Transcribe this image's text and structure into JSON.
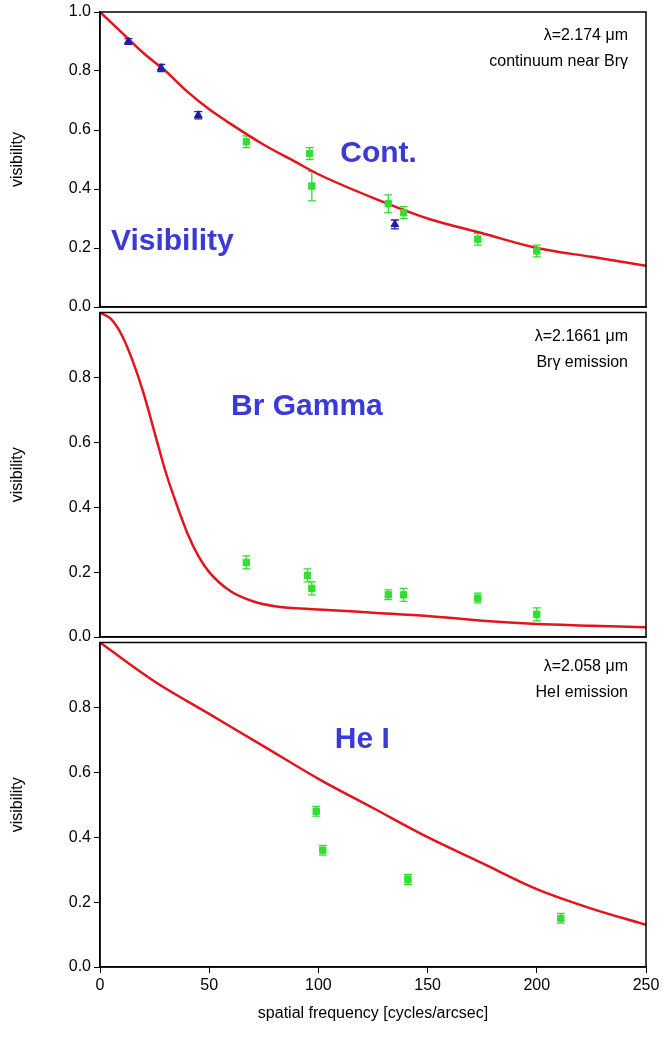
{
  "chart_data": [
    {
      "type": "scatter",
      "title": "Cont.",
      "subtitle": "Visibility",
      "annotations": [
        "λ=2.174 μm",
        "continuum near Brγ"
      ],
      "ylabel": "visibility",
      "xlim": [
        0,
        250
      ],
      "xticks": [
        0,
        50,
        100,
        150,
        200,
        250
      ],
      "ylim": [
        0,
        1
      ],
      "yticks": [
        {
          "value": 0,
          "label": "0.0"
        },
        {
          "value": 0.2,
          "label": "0.2"
        },
        {
          "value": 0.4,
          "label": "0.4"
        },
        {
          "value": 0.6,
          "label": "0.6"
        },
        {
          "value": 0.8,
          "label": "0.8"
        },
        {
          "value": 1,
          "label": "1.0"
        }
      ],
      "grid": false,
      "tick_labels": "y",
      "series": [
        {
          "type": "line",
          "color": "#e3141b",
          "line_style": "solid",
          "x": [
            0,
            10,
            20,
            30,
            40,
            50,
            60,
            75,
            90,
            100,
            125,
            150,
            175,
            200,
            225,
            250
          ],
          "values": [
            1.0,
            0.93,
            0.86,
            0.8,
            0.73,
            0.67,
            0.62,
            0.55,
            0.49,
            0.45,
            0.37,
            0.3,
            0.25,
            0.2,
            0.17,
            0.14
          ]
        },
        {
          "type": "scatter",
          "color": "#1c1ca8",
          "marker": "triangle",
          "x": [
            13,
            28,
            45,
            135
          ],
          "values": [
            0.9,
            0.81,
            0.65,
            0.28
          ],
          "errors": [
            0.01,
            0.012,
            0.012,
            0.015
          ]
        },
        {
          "type": "scatter",
          "color": "#33dd33",
          "marker": "square",
          "x": [
            67,
            96,
            97,
            132,
            139,
            173,
            200
          ],
          "values": [
            0.56,
            0.52,
            0.41,
            0.35,
            0.32,
            0.23,
            0.19
          ],
          "errors": [
            0.02,
            0.02,
            0.05,
            0.03,
            0.02,
            0.02,
            0.02
          ]
        }
      ]
    },
    {
      "type": "scatter",
      "title": "Br Gamma",
      "annotations": [
        "λ=2.1661 μm",
        "Brγ emission"
      ],
      "ylabel": "visibility",
      "xlim": [
        0,
        250
      ],
      "xticks": [
        0,
        50,
        100,
        150,
        200,
        250
      ],
      "ylim": [
        0,
        1
      ],
      "yticks": [
        {
          "value": 0,
          "label": "0.0"
        },
        {
          "value": 0.2,
          "label": "0.2"
        },
        {
          "value": 0.4,
          "label": "0.4"
        },
        {
          "value": 0.6,
          "label": "0.6"
        },
        {
          "value": 0.8,
          "label": "0.8"
        }
      ],
      "grid": false,
      "tick_labels": "y",
      "series": [
        {
          "type": "line",
          "color": "#e3141b",
          "line_style": "solid",
          "x": [
            0,
            5,
            10,
            15,
            20,
            25,
            30,
            35,
            40,
            45,
            50,
            60,
            70,
            80,
            100,
            125,
            150,
            175,
            200,
            225,
            250
          ],
          "values": [
            1.0,
            0.98,
            0.93,
            0.85,
            0.75,
            0.63,
            0.51,
            0.41,
            0.32,
            0.25,
            0.2,
            0.14,
            0.11,
            0.095,
            0.085,
            0.075,
            0.065,
            0.05,
            0.04,
            0.035,
            0.03
          ]
        },
        {
          "type": "scatter",
          "color": "#33dd33",
          "marker": "square",
          "x": [
            67,
            95,
            97,
            132,
            139,
            173,
            200
          ],
          "values": [
            0.23,
            0.19,
            0.15,
            0.13,
            0.13,
            0.12,
            0.07
          ],
          "errors": [
            0.02,
            0.02,
            0.02,
            0.015,
            0.02,
            0.015,
            0.02
          ]
        }
      ]
    },
    {
      "type": "scatter",
      "title": "He I",
      "annotations": [
        "λ=2.058 μm",
        "HeI emission"
      ],
      "xlabel": "spatial frequency [cycles/arcsec]",
      "ylabel": "visibility",
      "xlim": [
        0,
        250
      ],
      "xticks": [
        0,
        50,
        100,
        150,
        200,
        250
      ],
      "ylim": [
        0,
        1
      ],
      "yticks": [
        {
          "value": 0,
          "label": "0.0"
        },
        {
          "value": 0.2,
          "label": "0.2"
        },
        {
          "value": 0.4,
          "label": "0.4"
        },
        {
          "value": 0.6,
          "label": "0.6"
        },
        {
          "value": 0.8,
          "label": "0.8"
        }
      ],
      "grid": false,
      "series": [
        {
          "type": "line",
          "color": "#e3141b",
          "line_style": "solid",
          "x": [
            0,
            25,
            50,
            75,
            100,
            125,
            150,
            175,
            200,
            225,
            250
          ],
          "values": [
            1.0,
            0.88,
            0.78,
            0.68,
            0.58,
            0.49,
            0.4,
            0.32,
            0.24,
            0.18,
            0.13
          ]
        },
        {
          "type": "scatter",
          "color": "#33dd33",
          "marker": "square",
          "x": [
            99,
            102,
            141,
            211
          ],
          "values": [
            0.48,
            0.36,
            0.27,
            0.15
          ],
          "errors": [
            0.015,
            0.015,
            0.015,
            0.015
          ]
        }
      ]
    }
  ]
}
